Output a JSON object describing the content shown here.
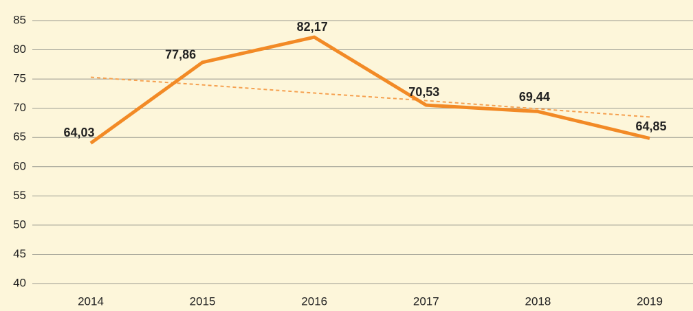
{
  "chart_data": {
    "type": "line",
    "categories": [
      "2014",
      "2015",
      "2016",
      "2017",
      "2018",
      "2019"
    ],
    "series": [
      {
        "color": "#f28a26",
        "values": [
          64.03,
          77.86,
          82.17,
          70.53,
          69.44,
          64.85
        ],
        "value_labels": [
          "64,03",
          "77,86",
          "82,17",
          "70,53",
          "69,44",
          "64,85"
        ]
      }
    ],
    "trend": {
      "color": "#f5a04f",
      "values": [
        75.3,
        74.0,
        72.6,
        71.3,
        69.9,
        68.5
      ]
    },
    "ylim": [
      40,
      85
    ],
    "yticks": [
      40,
      45,
      50,
      55,
      60,
      65,
      70,
      75,
      80,
      85
    ],
    "grid": true
  }
}
